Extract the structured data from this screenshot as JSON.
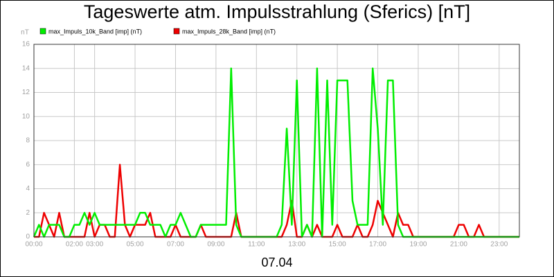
{
  "chart_data": {
    "type": "line",
    "title": "Tageswerte atm. Impulsstrahlung (Sferics) [nT]",
    "ylabel": "nT",
    "xlabel": "07.04",
    "x": [
      0,
      0.25,
      0.5,
      0.75,
      1,
      1.25,
      1.5,
      1.75,
      2,
      2.25,
      2.5,
      2.75,
      3,
      3.25,
      3.5,
      3.75,
      4,
      4.25,
      4.5,
      4.75,
      5,
      5.25,
      5.5,
      5.75,
      6,
      6.25,
      6.5,
      6.75,
      7,
      7.25,
      7.5,
      7.75,
      8,
      8.25,
      8.5,
      8.75,
      9,
      9.25,
      9.5,
      9.75,
      10,
      10.25,
      10.5,
      10.75,
      11,
      11.25,
      11.5,
      11.75,
      12,
      12.25,
      12.5,
      12.75,
      13,
      13.25,
      13.5,
      13.75,
      14,
      14.25,
      14.5,
      14.75,
      15,
      15.25,
      15.5,
      15.75,
      16,
      16.25,
      16.5,
      16.75,
      17,
      17.25,
      17.5,
      17.75,
      18,
      18.25,
      18.5,
      18.75,
      19,
      19.25,
      19.5,
      19.75,
      20,
      20.25,
      20.5,
      20.75,
      21,
      21.25,
      21.5,
      21.75,
      22,
      22.25,
      22.5,
      22.75,
      23,
      23.25,
      23.5,
      23.75,
      24
    ],
    "series": [
      {
        "name": "max_Impuls_10k_Band [imp] (nT)",
        "color": "#00ee00",
        "values": [
          0,
          1,
          0,
          1,
          1,
          1,
          0,
          0,
          1,
          1,
          2,
          1,
          2,
          1,
          1,
          1,
          1,
          1,
          1,
          1,
          1,
          2,
          2,
          1,
          1,
          1,
          0,
          1,
          1,
          2,
          1,
          0,
          0,
          1,
          1,
          1,
          1,
          1,
          1,
          14,
          1,
          0,
          0,
          0,
          0,
          0,
          0,
          0,
          0,
          1,
          9,
          1,
          13,
          0,
          1,
          0,
          14,
          0,
          13,
          1,
          13,
          13,
          13,
          3,
          1,
          1,
          1,
          14,
          9,
          1,
          13,
          13,
          1,
          0,
          0,
          0,
          0,
          0,
          0,
          0,
          0,
          0,
          0,
          0,
          0,
          0,
          0,
          0,
          0,
          0,
          0,
          0,
          0,
          0,
          0,
          0,
          0
        ]
      },
      {
        "name": "max_Impuls_28k_Band [imp] (nT)",
        "color": "#ee0000",
        "values": [
          0,
          0,
          2,
          1,
          0,
          2,
          0,
          0,
          0,
          0,
          0,
          2,
          0,
          1,
          1,
          0,
          0,
          6,
          1,
          0,
          1,
          1,
          1,
          2,
          0,
          0,
          0,
          0,
          1,
          0,
          0,
          0,
          0,
          1,
          0,
          0,
          0,
          0,
          0,
          0,
          2,
          0,
          0,
          0,
          0,
          0,
          0,
          0,
          0,
          0,
          1,
          3,
          0,
          0,
          1,
          0,
          1,
          0,
          0,
          0,
          1,
          0,
          0,
          0,
          1,
          0,
          0,
          1,
          3,
          2,
          1,
          0,
          2,
          1,
          1,
          0,
          0,
          0,
          0,
          0,
          0,
          0,
          0,
          0,
          1,
          1,
          0,
          0,
          1,
          0,
          0,
          0,
          0,
          0,
          0,
          0,
          0
        ]
      }
    ],
    "xlim": [
      0,
      24
    ],
    "xticks": [
      {
        "value": 0,
        "label": "00:00"
      },
      {
        "value": 2,
        "label": "02:00"
      },
      {
        "value": 3,
        "label": "03:00"
      },
      {
        "value": 5,
        "label": "05:00"
      },
      {
        "value": 7,
        "label": "07:00"
      },
      {
        "value": 9,
        "label": "09:00"
      },
      {
        "value": 11,
        "label": "11:00"
      },
      {
        "value": 13,
        "label": "13:00"
      },
      {
        "value": 15,
        "label": "15:00"
      },
      {
        "value": 17,
        "label": "17:00"
      },
      {
        "value": 19,
        "label": "19:00"
      },
      {
        "value": 21,
        "label": "21:00"
      },
      {
        "value": 23,
        "label": "23:00"
      }
    ],
    "ylim": [
      0,
      16
    ],
    "yticks": [
      0,
      2,
      4,
      6,
      8,
      10,
      12,
      14,
      16
    ],
    "grid": true
  }
}
